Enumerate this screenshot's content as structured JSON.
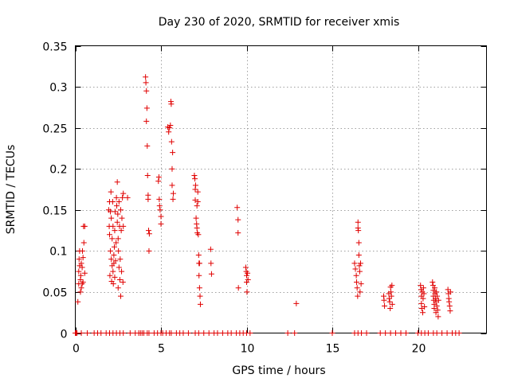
{
  "chart_data": {
    "type": "scatter",
    "title": "Day 230 of 2020, SRMTID for receiver xmis",
    "xlabel": "GPS time / hours",
    "ylabel": "SRMTID / TECUs",
    "xlim": [
      0,
      24
    ],
    "ylim": [
      0,
      0.35
    ],
    "xticks": [
      0,
      5,
      10,
      15,
      20
    ],
    "xtick_labels": [
      "0",
      "5",
      "10",
      "15",
      "20"
    ],
    "yticks": [
      0,
      0.05,
      0.1,
      0.15,
      0.2,
      0.25,
      0.3,
      0.35
    ],
    "ytick_labels": [
      "0",
      "0.05",
      "0.1",
      "0.15",
      "0.2",
      "0.25",
      "0.3",
      "0.35"
    ],
    "grid": true,
    "marker": "+",
    "color": "#e00000",
    "series": [
      {
        "name": "SRMTID",
        "points": [
          [
            0.15,
            0.038
          ],
          [
            0.2,
            0.06
          ],
          [
            0.2,
            0.075
          ],
          [
            0.22,
            0.09
          ],
          [
            0.25,
            0.082
          ],
          [
            0.25,
            0.1
          ],
          [
            0.3,
            0.065
          ],
          [
            0.3,
            0.05
          ],
          [
            0.32,
            0.07
          ],
          [
            0.35,
            0.055
          ],
          [
            0.35,
            0.085
          ],
          [
            0.4,
            0.08
          ],
          [
            0.4,
            0.06
          ],
          [
            0.42,
            0.1
          ],
          [
            0.45,
            0.092
          ],
          [
            0.45,
            0.062
          ],
          [
            0.48,
            0.13
          ],
          [
            0.5,
            0.11
          ],
          [
            0.55,
            0.13
          ],
          [
            0.55,
            0.073
          ],
          [
            1.95,
            0.15
          ],
          [
            1.98,
            0.13
          ],
          [
            2.0,
            0.16
          ],
          [
            2.0,
            0.12
          ],
          [
            2.02,
            0.07
          ],
          [
            2.05,
            0.148
          ],
          [
            2.05,
            0.1
          ],
          [
            2.08,
            0.172
          ],
          [
            2.1,
            0.09
          ],
          [
            2.1,
            0.14
          ],
          [
            2.12,
            0.063
          ],
          [
            2.15,
            0.082
          ],
          [
            2.15,
            0.115
          ],
          [
            2.18,
            0.16
          ],
          [
            2.2,
            0.075
          ],
          [
            2.2,
            0.13
          ],
          [
            2.22,
            0.06
          ],
          [
            2.25,
            0.085
          ],
          [
            2.25,
            0.095
          ],
          [
            2.28,
            0.105
          ],
          [
            2.3,
            0.125
          ],
          [
            2.3,
            0.068
          ],
          [
            2.32,
            0.148
          ],
          [
            2.35,
            0.088
          ],
          [
            2.38,
            0.11
          ],
          [
            2.4,
            0.165
          ],
          [
            2.42,
            0.155
          ],
          [
            2.45,
            0.184
          ],
          [
            2.45,
            0.135
          ],
          [
            2.48,
            0.145
          ],
          [
            2.5,
            0.115
          ],
          [
            2.5,
            0.055
          ],
          [
            2.52,
            0.1
          ],
          [
            2.55,
            0.08
          ],
          [
            2.55,
            0.16
          ],
          [
            2.58,
            0.13
          ],
          [
            2.6,
            0.065
          ],
          [
            2.62,
            0.09
          ],
          [
            2.65,
            0.15
          ],
          [
            2.65,
            0.045
          ],
          [
            2.68,
            0.125
          ],
          [
            2.7,
            0.075
          ],
          [
            2.72,
            0.14
          ],
          [
            2.75,
            0.165
          ],
          [
            2.78,
            0.062
          ],
          [
            2.8,
            0.13
          ],
          [
            2.8,
            0.17
          ],
          [
            3.05,
            0.165
          ],
          [
            4.1,
            0.312
          ],
          [
            4.12,
            0.305
          ],
          [
            4.15,
            0.295
          ],
          [
            4.15,
            0.258
          ],
          [
            4.18,
            0.274
          ],
          [
            4.2,
            0.228
          ],
          [
            4.22,
            0.192
          ],
          [
            4.25,
            0.168
          ],
          [
            4.25,
            0.163
          ],
          [
            4.28,
            0.125
          ],
          [
            4.3,
            0.1
          ],
          [
            4.32,
            0.121
          ],
          [
            4.85,
            0.185
          ],
          [
            4.88,
            0.19
          ],
          [
            4.9,
            0.163
          ],
          [
            4.92,
            0.155
          ],
          [
            4.95,
            0.15
          ],
          [
            5.0,
            0.142
          ],
          [
            5.0,
            0.133
          ],
          [
            5.4,
            0.251
          ],
          [
            5.45,
            0.245
          ],
          [
            5.5,
            0.25
          ],
          [
            5.55,
            0.253
          ],
          [
            5.58,
            0.282
          ],
          [
            5.6,
            0.279
          ],
          [
            5.62,
            0.233
          ],
          [
            5.65,
            0.2
          ],
          [
            5.65,
            0.18
          ],
          [
            5.68,
            0.22
          ],
          [
            5.7,
            0.163
          ],
          [
            5.72,
            0.17
          ],
          [
            6.95,
            0.192
          ],
          [
            6.98,
            0.188
          ],
          [
            7.0,
            0.175
          ],
          [
            7.0,
            0.162
          ],
          [
            7.02,
            0.18
          ],
          [
            7.05,
            0.14
          ],
          [
            7.08,
            0.133
          ],
          [
            7.1,
            0.155
          ],
          [
            7.1,
            0.128
          ],
          [
            7.12,
            0.122
          ],
          [
            7.15,
            0.172
          ],
          [
            7.15,
            0.16
          ],
          [
            7.18,
            0.12
          ],
          [
            7.2,
            0.095
          ],
          [
            7.22,
            0.085
          ],
          [
            7.22,
            0.07
          ],
          [
            7.25,
            0.085
          ],
          [
            7.25,
            0.055
          ],
          [
            7.28,
            0.045
          ],
          [
            7.3,
            0.035
          ],
          [
            7.9,
            0.102
          ],
          [
            7.92,
            0.085
          ],
          [
            7.95,
            0.072
          ],
          [
            9.45,
            0.153
          ],
          [
            9.5,
            0.138
          ],
          [
            9.5,
            0.122
          ],
          [
            9.52,
            0.055
          ],
          [
            9.95,
            0.08
          ],
          [
            9.98,
            0.075
          ],
          [
            10.0,
            0.07
          ],
          [
            10.0,
            0.062
          ],
          [
            10.02,
            0.05
          ],
          [
            10.05,
            0.073
          ],
          [
            10.08,
            0.065
          ],
          [
            12.9,
            0.036
          ],
          [
            16.3,
            0.085
          ],
          [
            16.35,
            0.078
          ],
          [
            16.4,
            0.07
          ],
          [
            16.42,
            0.062
          ],
          [
            16.45,
            0.055
          ],
          [
            16.48,
            0.045
          ],
          [
            16.5,
            0.135
          ],
          [
            16.5,
            0.128
          ],
          [
            16.52,
            0.125
          ],
          [
            16.55,
            0.11
          ],
          [
            16.55,
            0.095
          ],
          [
            16.58,
            0.082
          ],
          [
            16.6,
            0.075
          ],
          [
            16.62,
            0.05
          ],
          [
            16.65,
            0.085
          ],
          [
            16.68,
            0.06
          ],
          [
            18.0,
            0.045
          ],
          [
            18.02,
            0.04
          ],
          [
            18.05,
            0.033
          ],
          [
            18.3,
            0.048
          ],
          [
            18.32,
            0.042
          ],
          [
            18.35,
            0.038
          ],
          [
            18.38,
            0.03
          ],
          [
            18.4,
            0.056
          ],
          [
            18.42,
            0.05
          ],
          [
            18.45,
            0.045
          ],
          [
            18.48,
            0.058
          ],
          [
            18.5,
            0.035
          ],
          [
            20.15,
            0.058
          ],
          [
            20.18,
            0.053
          ],
          [
            20.2,
            0.045
          ],
          [
            20.2,
            0.036
          ],
          [
            20.22,
            0.03
          ],
          [
            20.25,
            0.05
          ],
          [
            20.28,
            0.025
          ],
          [
            20.3,
            0.042
          ],
          [
            20.32,
            0.055
          ],
          [
            20.35,
            0.048
          ],
          [
            20.38,
            0.032
          ],
          [
            20.85,
            0.062
          ],
          [
            20.88,
            0.058
          ],
          [
            20.9,
            0.052
          ],
          [
            20.9,
            0.045
          ],
          [
            20.92,
            0.04
          ],
          [
            20.95,
            0.035
          ],
          [
            20.95,
            0.03
          ],
          [
            20.98,
            0.055
          ],
          [
            21.0,
            0.048
          ],
          [
            21.02,
            0.042
          ],
          [
            21.05,
            0.038
          ],
          [
            21.05,
            0.025
          ],
          [
            21.08,
            0.05
          ],
          [
            21.1,
            0.033
          ],
          [
            21.12,
            0.045
          ],
          [
            21.15,
            0.028
          ],
          [
            21.18,
            0.02
          ],
          [
            21.2,
            0.04
          ],
          [
            21.75,
            0.053
          ],
          [
            21.78,
            0.048
          ],
          [
            21.8,
            0.042
          ],
          [
            21.82,
            0.038
          ],
          [
            21.85,
            0.033
          ],
          [
            21.88,
            0.027
          ],
          [
            21.9,
            0.05
          ],
          [
            0.0,
            0
          ],
          [
            0.05,
            0
          ],
          [
            0.1,
            0
          ],
          [
            0.35,
            0
          ],
          [
            0.7,
            0
          ],
          [
            1.1,
            0
          ],
          [
            1.3,
            0
          ],
          [
            1.5,
            0
          ],
          [
            1.8,
            0
          ],
          [
            2.0,
            0
          ],
          [
            2.2,
            0
          ],
          [
            2.4,
            0
          ],
          [
            2.6,
            0
          ],
          [
            2.8,
            0
          ],
          [
            3.2,
            0
          ],
          [
            3.5,
            0
          ],
          [
            3.7,
            0
          ],
          [
            3.8,
            0
          ],
          [
            3.9,
            0
          ],
          [
            4.0,
            0
          ],
          [
            4.2,
            0
          ],
          [
            4.3,
            0
          ],
          [
            4.6,
            0
          ],
          [
            4.8,
            0
          ],
          [
            5.0,
            0
          ],
          [
            5.1,
            0
          ],
          [
            5.3,
            0
          ],
          [
            5.5,
            0
          ],
          [
            5.6,
            0
          ],
          [
            5.9,
            0
          ],
          [
            6.1,
            0
          ],
          [
            6.3,
            0
          ],
          [
            6.6,
            0
          ],
          [
            7.0,
            0
          ],
          [
            7.2,
            0
          ],
          [
            7.5,
            0
          ],
          [
            7.8,
            0
          ],
          [
            8.1,
            0
          ],
          [
            8.3,
            0
          ],
          [
            8.6,
            0
          ],
          [
            8.9,
            0
          ],
          [
            9.1,
            0
          ],
          [
            9.4,
            0
          ],
          [
            9.6,
            0
          ],
          [
            9.8,
            0
          ],
          [
            10.0,
            0
          ],
          [
            10.2,
            0
          ],
          [
            12.4,
            0
          ],
          [
            12.8,
            0
          ],
          [
            15.0,
            0
          ],
          [
            16.3,
            0
          ],
          [
            16.5,
            0
          ],
          [
            16.7,
            0
          ],
          [
            17.0,
            0
          ],
          [
            17.8,
            0
          ],
          [
            18.1,
            0
          ],
          [
            18.4,
            0
          ],
          [
            18.7,
            0
          ],
          [
            19.0,
            0
          ],
          [
            19.3,
            0
          ],
          [
            20.0,
            0
          ],
          [
            20.2,
            0
          ],
          [
            20.4,
            0
          ],
          [
            20.6,
            0
          ],
          [
            20.9,
            0
          ],
          [
            21.1,
            0
          ],
          [
            21.4,
            0
          ],
          [
            21.7,
            0
          ],
          [
            22.0,
            0
          ],
          [
            22.2,
            0
          ],
          [
            22.4,
            0
          ]
        ]
      }
    ]
  }
}
